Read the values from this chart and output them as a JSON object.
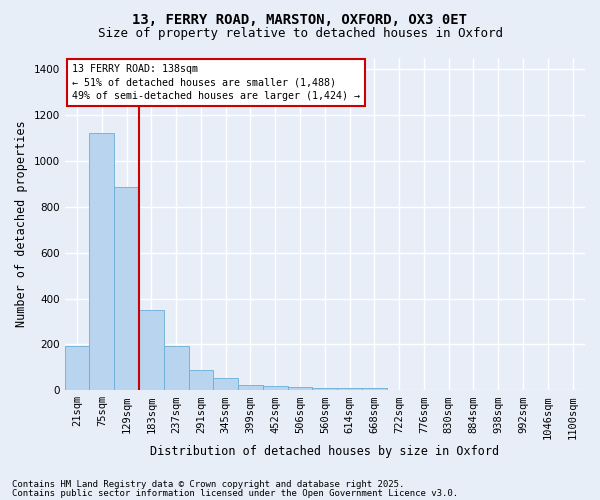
{
  "title1": "13, FERRY ROAD, MARSTON, OXFORD, OX3 0ET",
  "title2": "Size of property relative to detached houses in Oxford",
  "xlabel": "Distribution of detached houses by size in Oxford",
  "ylabel": "Number of detached properties",
  "categories": [
    "21sqm",
    "75sqm",
    "129sqm",
    "183sqm",
    "237sqm",
    "291sqm",
    "345sqm",
    "399sqm",
    "452sqm",
    "506sqm",
    "560sqm",
    "614sqm",
    "668sqm",
    "722sqm",
    "776sqm",
    "830sqm",
    "884sqm",
    "938sqm",
    "992sqm",
    "1046sqm",
    "1100sqm"
  ],
  "values": [
    195,
    1120,
    885,
    350,
    195,
    90,
    55,
    22,
    18,
    15,
    12,
    8,
    8,
    0,
    0,
    0,
    0,
    0,
    0,
    0,
    0
  ],
  "bar_color": "#b8d4ee",
  "bar_edge_color": "#6aaed6",
  "bar_width": 1.0,
  "vline_color": "#cc0000",
  "vline_pos": 2.5,
  "box_text": "13 FERRY ROAD: 138sqm\n← 51% of detached houses are smaller (1,488)\n49% of semi-detached houses are larger (1,424) →",
  "box_edge_color": "#cc0000",
  "ylim": [
    0,
    1450
  ],
  "yticks": [
    0,
    200,
    400,
    600,
    800,
    1000,
    1200,
    1400
  ],
  "bg_color": "#e8eef8",
  "plot_bg_color": "#e8eef8",
  "grid_color": "#ffffff",
  "footer1": "Contains HM Land Registry data © Crown copyright and database right 2025.",
  "footer2": "Contains public sector information licensed under the Open Government Licence v3.0.",
  "title1_fontsize": 10,
  "title2_fontsize": 9,
  "xlabel_fontsize": 8.5,
  "ylabel_fontsize": 8.5,
  "tick_fontsize": 7.5,
  "footer_fontsize": 6.5
}
